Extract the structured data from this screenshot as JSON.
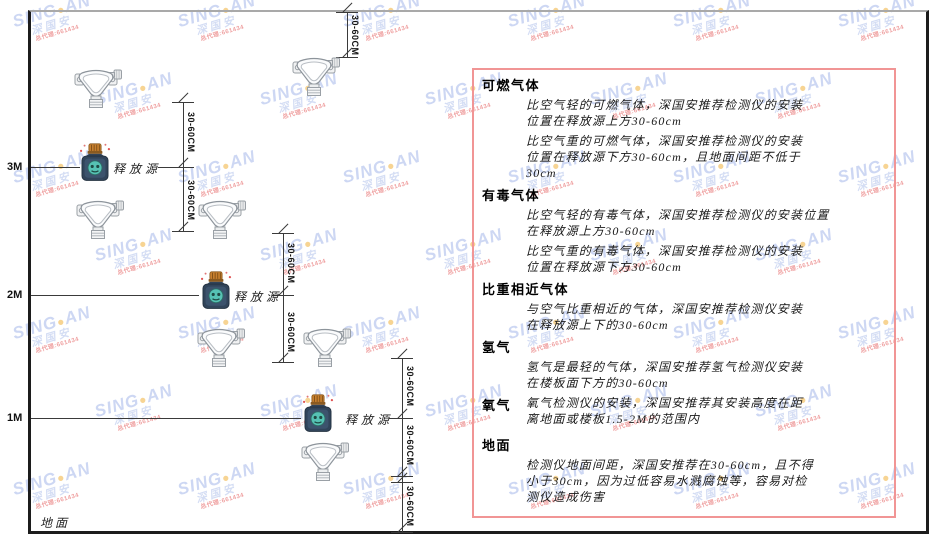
{
  "watermark": {
    "brand_prefix": "SING",
    "dot": "●",
    "brand_suffix": "AN",
    "brand_cn": "深国安",
    "sub_text": "总代理:661434"
  },
  "diagram": {
    "ground_label": "地面",
    "release_source_label": "释放源",
    "dimension_label": "30-60CM",
    "height_labels": {
      "h3": "3M",
      "h2": "2M",
      "h1": "1M"
    }
  },
  "panel": {
    "border_color": "#f19595",
    "sections": [
      {
        "heading": "可燃气体",
        "paragraphs": [
          "比空气轻的可燃气体，深国安推荐检测仪的安装\n位置在释放源上方30-60cm",
          "比空气重的可燃气体，深国安推荐检测仪的安装\n位置在释放源下方30-60cm，且地面间距不低于\n30cm"
        ]
      },
      {
        "heading": "有毒气体",
        "paragraphs": [
          "比空气轻的有毒气体，深国安推荐检测仪的安装位置\n在释放源上方30-60cm",
          "比空气重的有毒气体，深国安推荐检测仪的安装\n位置在释放源下方30-60cm"
        ]
      },
      {
        "heading": "比重相近气体",
        "paragraphs": [
          "与空气比重相近的气体，深国安推荐检测仪安装\n在释放源上下的30-60cm"
        ]
      },
      {
        "heading": "氢气",
        "paragraphs": [
          "氢气是最轻的气体，深国安推荐氢气检测仪安装\n在楼板面下方的30-60cm"
        ]
      },
      {
        "heading": "氧气",
        "paragraphs": [
          "氧气检测仪的安装，深国安推荐其安装高度在距\n离地面或楼板1.5-2M的范围内"
        ]
      },
      {
        "heading": "地面",
        "paragraphs": [
          "检测仪地面间距，深国安推荐在30-60cm，且不得\n小于30cm，因为过低容易水溅腐蚀等，容易对检\n测仪造成伤害"
        ]
      }
    ]
  }
}
